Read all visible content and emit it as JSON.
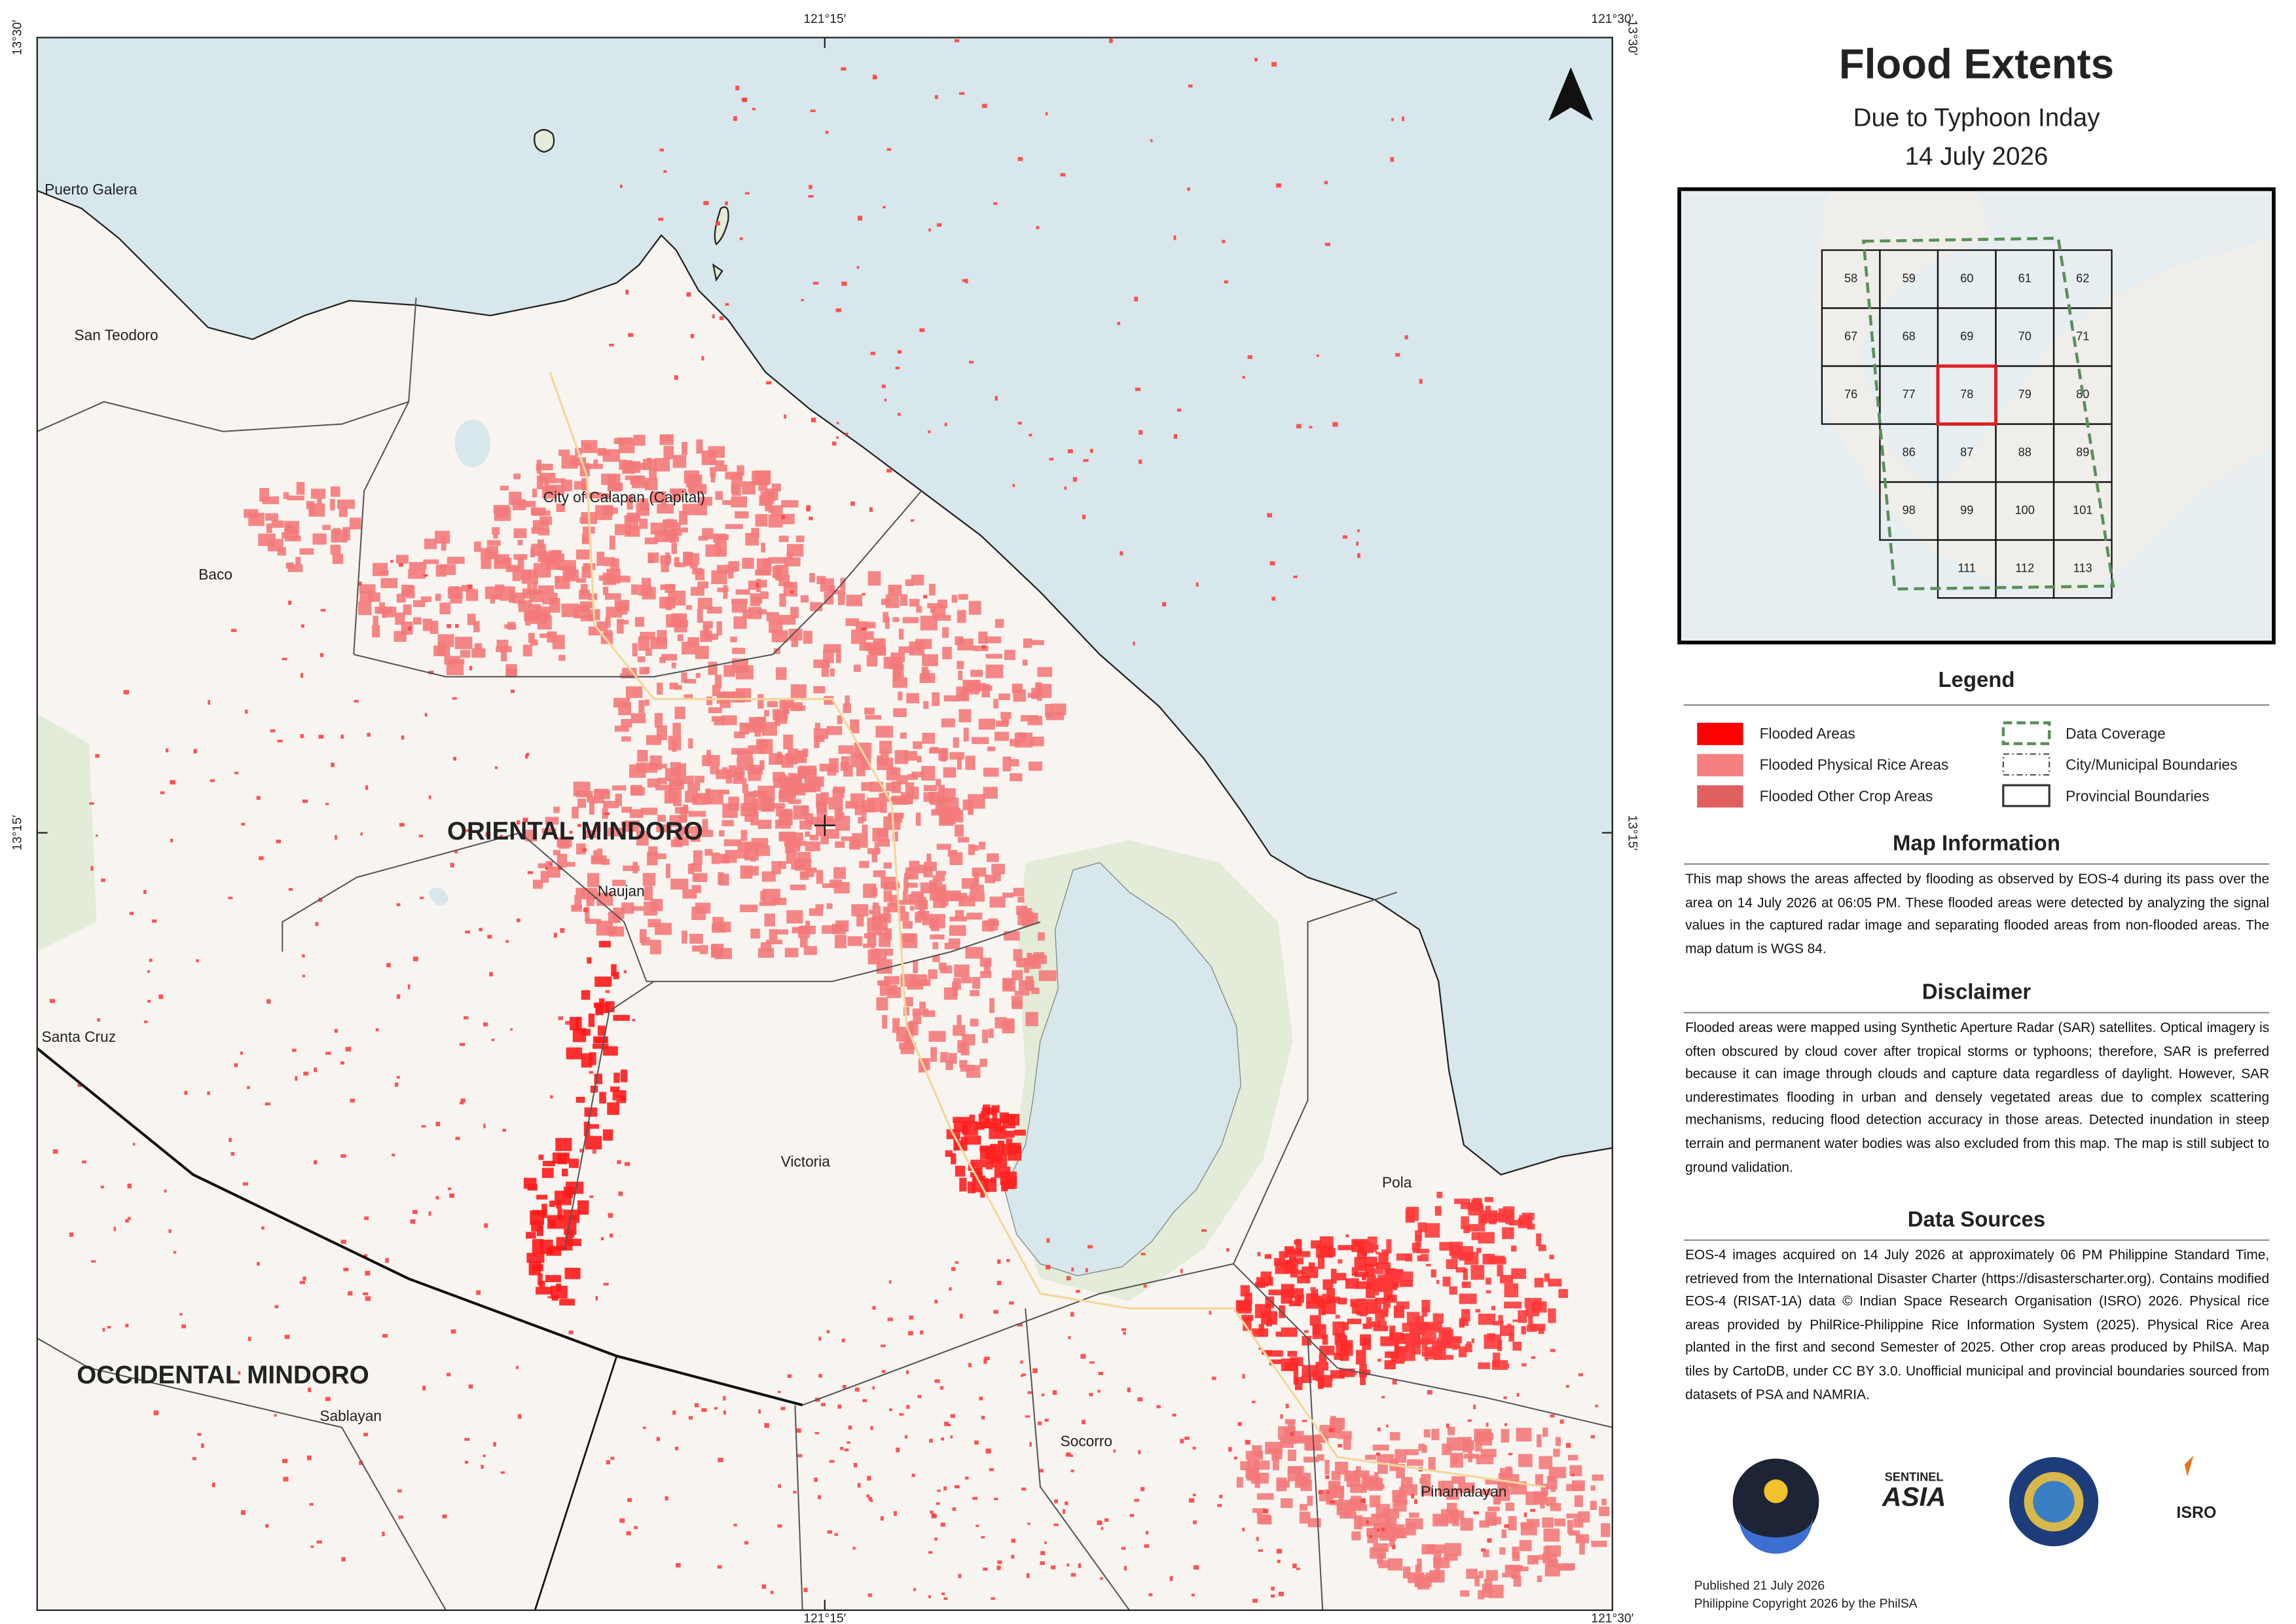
{
  "map": {
    "coord_labels": {
      "top": [
        "121°15′",
        "121°30′"
      ],
      "bottom": [
        "121°15′",
        "121°30′"
      ],
      "left": [
        "13°30′",
        "13°15′"
      ],
      "right": [
        "13°30′",
        "13°15′"
      ]
    },
    "places": [
      "Puerto Galera",
      "San Teodoro",
      "Baco",
      "City of Calapan (Capital)",
      "Naujan",
      "Santa Cruz",
      "Victoria",
      "Pola",
      "Socorro",
      "Sablayan",
      "Pinamalayan"
    ],
    "provinces": [
      "ORIENTAL MINDORO",
      "OCCIDENTAL MINDORO"
    ]
  },
  "header": {
    "title": "Flood Extents",
    "subtitle": "Due to Typhoon Inday",
    "date": "14 July 2026"
  },
  "index_map": {
    "tiles": [
      "58",
      "59",
      "60",
      "61",
      "62",
      "67",
      "68",
      "69",
      "70",
      "71",
      "76",
      "77",
      "78",
      "79",
      "80",
      "86",
      "87",
      "88",
      "89",
      "98",
      "99",
      "100",
      "101",
      "111",
      "112",
      "113"
    ]
  },
  "legend": {
    "title": "Legend",
    "items": [
      "Flooded Areas",
      "Flooded Physical Rice Areas",
      "Flooded Other Crop Areas",
      "Data Coverage",
      "City/Municipal Boundaries",
      "Provincial Boundaries"
    ]
  },
  "map_information": {
    "title": "Map Information",
    "text": "This map shows the areas affected by flooding as observed by EOS-4 during its pass over the area on 14 July 2026 at 06:05 PM. These flooded areas were detected by analyzing the signal values in the captured radar image and separating flooded areas from non-flooded areas. The map datum is WGS 84."
  },
  "disclaimer": {
    "title": "Disclaimer",
    "text": "Flooded areas were mapped using Synthetic Aperture Radar (SAR) satellites. Optical imagery is often obscured by cloud cover after tropical storms or typhoons; therefore, SAR is preferred because it can image through clouds and capture data regardless of daylight. However, SAR underestimates flooding in urban and densely vegetated areas due to complex scattering mechanisms, reducing flood detection accuracy in those areas. Detected inundation in steep terrain and permanent water bodies was also excluded from this map. The map is still subject to ground validation."
  },
  "data_sources": {
    "title": "Data Sources",
    "text": "EOS-4 images acquired on 14 July 2026 at approximately 06 PM Philippine Standard Time, retrieved from the International Disaster Charter (https://disasterscharter.org). Contains modified EOS-4 (RISAT-1A) data © Indian Space Research Organisation (ISRO) 2026. Physical rice areas provided by PhilRice-Philippine Rice Information System (2025). Physical Rice Area planted in the first and second Semester of 2025. Other crop areas produced by PhilSA. Map tiles by CartoDB, under CC BY 3.0. Unofficial municipal and provincial boundaries sourced from datasets of PSA and NAMRIA."
  },
  "logos": [
    "SENTINEL",
    "ASIA",
    "ISRO"
  ],
  "footer": {
    "published": "Published 21 July 2026",
    "copyright": "Philippine Copyright 2026 by the PhilSA"
  }
}
